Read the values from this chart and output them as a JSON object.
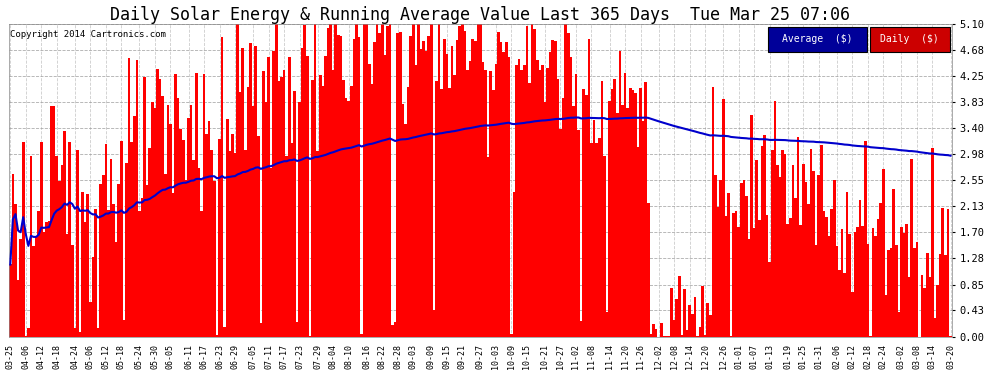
{
  "title": "Daily Solar Energy & Running Average Value Last 365 Days  Tue Mar 25 07:06",
  "copyright": "Copyright 2014 Cartronics.com",
  "yticks": [
    0.0,
    0.43,
    0.85,
    1.28,
    1.7,
    2.13,
    2.55,
    2.98,
    3.4,
    3.83,
    4.25,
    4.68,
    5.1
  ],
  "ylim": [
    0.0,
    5.1
  ],
  "bar_color": "#FF0000",
  "avg_line_color": "#0000CC",
  "bg_color": "#FFFFFF",
  "plot_bg_color": "#FFFFFF",
  "grid_color": "#999999",
  "title_fontsize": 12,
  "legend_avg_label": "Average  ($)",
  "legend_daily_label": "Daily  ($)",
  "legend_avg_bg": "#000099",
  "legend_daily_bg": "#CC0000",
  "n_bars": 365,
  "xtick_labels": [
    "03-25",
    "04-06",
    "04-12",
    "04-18",
    "04-24",
    "05-06",
    "05-12",
    "05-18",
    "05-24",
    "05-30",
    "06-05",
    "06-11",
    "06-17",
    "06-23",
    "06-29",
    "07-05",
    "07-11",
    "07-17",
    "07-23",
    "07-29",
    "08-04",
    "08-10",
    "08-16",
    "08-22",
    "08-28",
    "09-03",
    "09-09",
    "09-15",
    "09-21",
    "09-27",
    "10-03",
    "10-09",
    "10-15",
    "10-21",
    "10-27",
    "11-02",
    "11-08",
    "11-14",
    "11-20",
    "11-26",
    "12-02",
    "12-08",
    "12-14",
    "12-20",
    "12-26",
    "01-01",
    "01-07",
    "01-13",
    "01-19",
    "01-25",
    "01-31",
    "02-06",
    "02-12",
    "02-18",
    "02-24",
    "03-02",
    "03-08",
    "03-14",
    "03-20"
  ]
}
